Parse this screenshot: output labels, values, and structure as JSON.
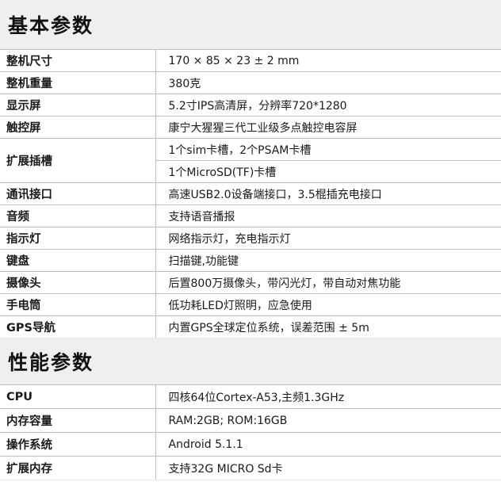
{
  "sections": [
    {
      "title": "基本参数",
      "rows": [
        {
          "label": "整机尺寸",
          "values": [
            "170 × 85 × 23 ± 2 mm"
          ]
        },
        {
          "label": "整机重量",
          "values": [
            "380克"
          ]
        },
        {
          "label": "显示屏",
          "values": [
            "5.2寸IPS高清屏，分辨率720*1280"
          ]
        },
        {
          "label": "触控屏",
          "values": [
            "康宁大猩猩三代工业级多点触控电容屏"
          ]
        },
        {
          "label": "扩展插槽",
          "values": [
            "1个sim卡槽，2个PSAM卡槽",
            "1个MicroSD(TF)卡槽"
          ]
        },
        {
          "label": "通讯接口",
          "values": [
            "高速USB2.0设备端接口，3.5棍插充电接口"
          ]
        },
        {
          "label": "音频",
          "values": [
            "支持语音播报"
          ]
        },
        {
          "label": "指示灯",
          "values": [
            "网络指示灯，充电指示灯"
          ]
        },
        {
          "label": "键盘",
          "values": [
            "扫描键,功能键"
          ]
        },
        {
          "label": "摄像头",
          "values": [
            "后置800万摄像头，带闪光灯，带自动对焦功能"
          ]
        },
        {
          "label": "手电筒",
          "values": [
            "低功耗LED灯照明，应急使用"
          ]
        },
        {
          "label": "GPS导航",
          "values": [
            "内置GPS全球定位系统，误差范围 ± 5m"
          ]
        }
      ]
    },
    {
      "title": "性能参数",
      "rows": [
        {
          "label": "CPU",
          "values": [
            "四核64位Cortex-A53,主频1.3GHz"
          ]
        },
        {
          "label": "内存容量",
          "values": [
            "RAM:2GB; ROM:16GB"
          ]
        },
        {
          "label": "操作系统",
          "values": [
            "Android 5.1.1"
          ]
        },
        {
          "label": "扩展内存",
          "values": [
            "支持32G MICRO Sd卡"
          ]
        }
      ]
    }
  ]
}
